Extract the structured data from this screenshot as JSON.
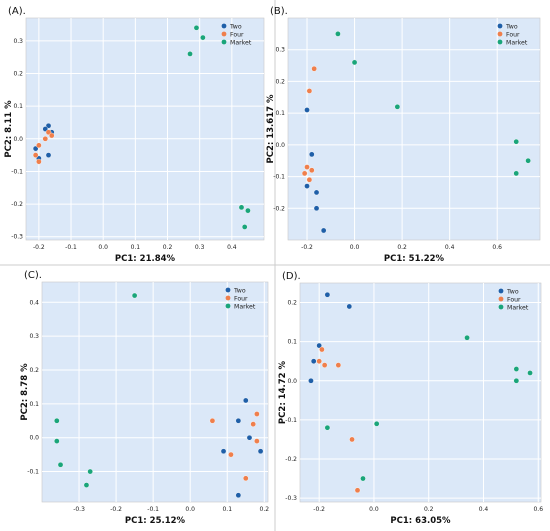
{
  "colors": {
    "background": "#dbe8f8",
    "grid": "#ffffff",
    "border": "#c9c9c9",
    "tick_text": "#222222",
    "label_text": "#111111"
  },
  "chart_data": [
    {
      "type": "scatter",
      "panel_label": "(A).",
      "xlabel": "PC1: 21.84%",
      "ylabel": "PC2: 8.11 %",
      "xlim": [
        -0.24,
        0.5
      ],
      "ylim": [
        -0.31,
        0.37
      ],
      "xticks": [
        -0.2,
        -0.1,
        0.0,
        0.1,
        0.2,
        0.3,
        0.4
      ],
      "xtick_labels": [
        "-0.2",
        "-0.1",
        "0.0",
        "0.1",
        "0.2",
        "0.3",
        "0.4"
      ],
      "yticks": [
        -0.3,
        -0.2,
        -0.1,
        0.0,
        0.1,
        0.2,
        0.3
      ],
      "ytick_labels": [
        "-0.3",
        "-0.2",
        "-0.1",
        "0.0",
        "0.1",
        "0.2",
        "0.3"
      ],
      "grid": true,
      "legend_position": "top-right",
      "series": [
        {
          "name": "Two",
          "color": "#1f5fa8",
          "x": [
            -0.17,
            -0.18,
            -0.16,
            -0.21,
            -0.2,
            -0.17
          ],
          "y": [
            0.04,
            0.03,
            0.02,
            -0.03,
            -0.06,
            -0.05
          ]
        },
        {
          "name": "Four",
          "color": "#ef7f4c",
          "x": [
            -0.17,
            -0.16,
            -0.2,
            -0.21,
            -0.2,
            -0.18
          ],
          "y": [
            0.02,
            0.01,
            -0.02,
            -0.05,
            -0.07,
            0.0
          ]
        },
        {
          "name": "Market",
          "color": "#1aa57a",
          "x": [
            0.29,
            0.31,
            0.27,
            0.43,
            0.45,
            0.44
          ],
          "y": [
            0.34,
            0.31,
            0.26,
            -0.21,
            -0.22,
            -0.27
          ]
        }
      ]
    },
    {
      "type": "scatter",
      "panel_label": "(B).",
      "xlabel": "PC1: 51.22%",
      "ylabel": "PC2: 13.617 %",
      "xlim": [
        -0.28,
        0.78
      ],
      "ylim": [
        -0.3,
        0.4
      ],
      "xticks": [
        -0.2,
        0.0,
        0.2,
        0.4,
        0.6
      ],
      "xtick_labels": [
        "-0.2",
        "0.0",
        "0.2",
        "0.4",
        "0.6"
      ],
      "yticks": [
        -0.2,
        -0.1,
        0.0,
        0.1,
        0.2,
        0.3
      ],
      "ytick_labels": [
        "-0.2",
        "-0.1",
        "0.0",
        "0.1",
        "0.2",
        "0.3"
      ],
      "grid": true,
      "legend_position": "top-right",
      "series": [
        {
          "name": "Two",
          "color": "#1f5fa8",
          "x": [
            -0.2,
            -0.18,
            -0.2,
            -0.16,
            -0.16,
            -0.13
          ],
          "y": [
            0.11,
            -0.03,
            -0.13,
            -0.15,
            -0.2,
            -0.27
          ]
        },
        {
          "name": "Four",
          "color": "#ef7f4c",
          "x": [
            -0.17,
            -0.19,
            -0.2,
            -0.18,
            -0.21,
            -0.19
          ],
          "y": [
            0.24,
            0.17,
            -0.07,
            -0.08,
            -0.09,
            -0.11
          ]
        },
        {
          "name": "Market",
          "color": "#1aa57a",
          "x": [
            -0.07,
            0.0,
            0.18,
            0.68,
            0.73,
            0.68
          ],
          "y": [
            0.35,
            0.26,
            0.12,
            0.01,
            -0.05,
            -0.09
          ]
        }
      ]
    },
    {
      "type": "scatter",
      "panel_label": "(C).",
      "xlabel": "PC1: 25.12%",
      "ylabel": "PC2: 8.78 %",
      "xlim": [
        -0.4,
        0.21
      ],
      "ylim": [
        -0.19,
        0.46
      ],
      "xticks": [
        -0.3,
        -0.2,
        -0.1,
        0.0,
        0.1,
        0.2
      ],
      "xtick_labels": [
        "-0.3",
        "-0.2",
        "-0.1",
        "0.0",
        "0.1",
        "0.2"
      ],
      "yticks": [
        -0.1,
        0.0,
        0.1,
        0.2,
        0.3,
        0.4
      ],
      "ytick_labels": [
        "-0.1",
        "0.0",
        "0.1",
        "0.2",
        "0.3",
        "0.4"
      ],
      "grid": true,
      "legend_position": "top-right",
      "series": [
        {
          "name": "Two",
          "color": "#1f5fa8",
          "x": [
            0.15,
            0.13,
            0.16,
            0.09,
            0.19,
            0.13
          ],
          "y": [
            0.11,
            0.05,
            0.0,
            -0.04,
            -0.04,
            -0.17
          ]
        },
        {
          "name": "Four",
          "color": "#ef7f4c",
          "x": [
            0.18,
            0.17,
            0.18,
            0.06,
            0.11,
            0.15
          ],
          "y": [
            0.07,
            0.04,
            -0.01,
            0.05,
            -0.05,
            -0.12
          ]
        },
        {
          "name": "Market",
          "color": "#1aa57a",
          "x": [
            -0.15,
            -0.36,
            -0.36,
            -0.35,
            -0.27,
            -0.28
          ],
          "y": [
            0.42,
            0.05,
            -0.01,
            -0.08,
            -0.1,
            -0.14
          ]
        }
      ]
    },
    {
      "type": "scatter",
      "panel_label": "(D).",
      "xlabel": "PC1: 63.05%",
      "ylabel": "PC2: 14.72 %",
      "xlim": [
        -0.27,
        0.61
      ],
      "ylim": [
        -0.31,
        0.25
      ],
      "xticks": [
        -0.2,
        0.0,
        0.2,
        0.4,
        0.6
      ],
      "xtick_labels": [
        "-0.2",
        "0.0",
        "0.2",
        "0.4",
        "0.6"
      ],
      "yticks": [
        -0.3,
        -0.2,
        -0.1,
        0.0,
        0.1,
        0.2
      ],
      "ytick_labels": [
        "-0.3",
        "-0.2",
        "-0.1",
        "0.0",
        "0.1",
        "0.2"
      ],
      "grid": true,
      "legend_position": "top-right",
      "series": [
        {
          "name": "Two",
          "color": "#1f5fa8",
          "x": [
            -0.17,
            -0.09,
            -0.2,
            -0.22,
            -0.23
          ],
          "y": [
            0.22,
            0.19,
            0.09,
            0.05,
            0.0
          ]
        },
        {
          "name": "Four",
          "color": "#ef7f4c",
          "x": [
            -0.19,
            -0.2,
            -0.18,
            -0.13,
            -0.08,
            -0.06
          ],
          "y": [
            0.08,
            0.05,
            0.04,
            0.04,
            -0.15,
            -0.28
          ]
        },
        {
          "name": "Market",
          "color": "#1aa57a",
          "x": [
            0.34,
            0.52,
            0.57,
            0.52,
            -0.17,
            0.01,
            -0.04
          ],
          "y": [
            0.11,
            0.03,
            0.02,
            0.0,
            -0.12,
            -0.11,
            -0.25
          ]
        }
      ]
    }
  ]
}
